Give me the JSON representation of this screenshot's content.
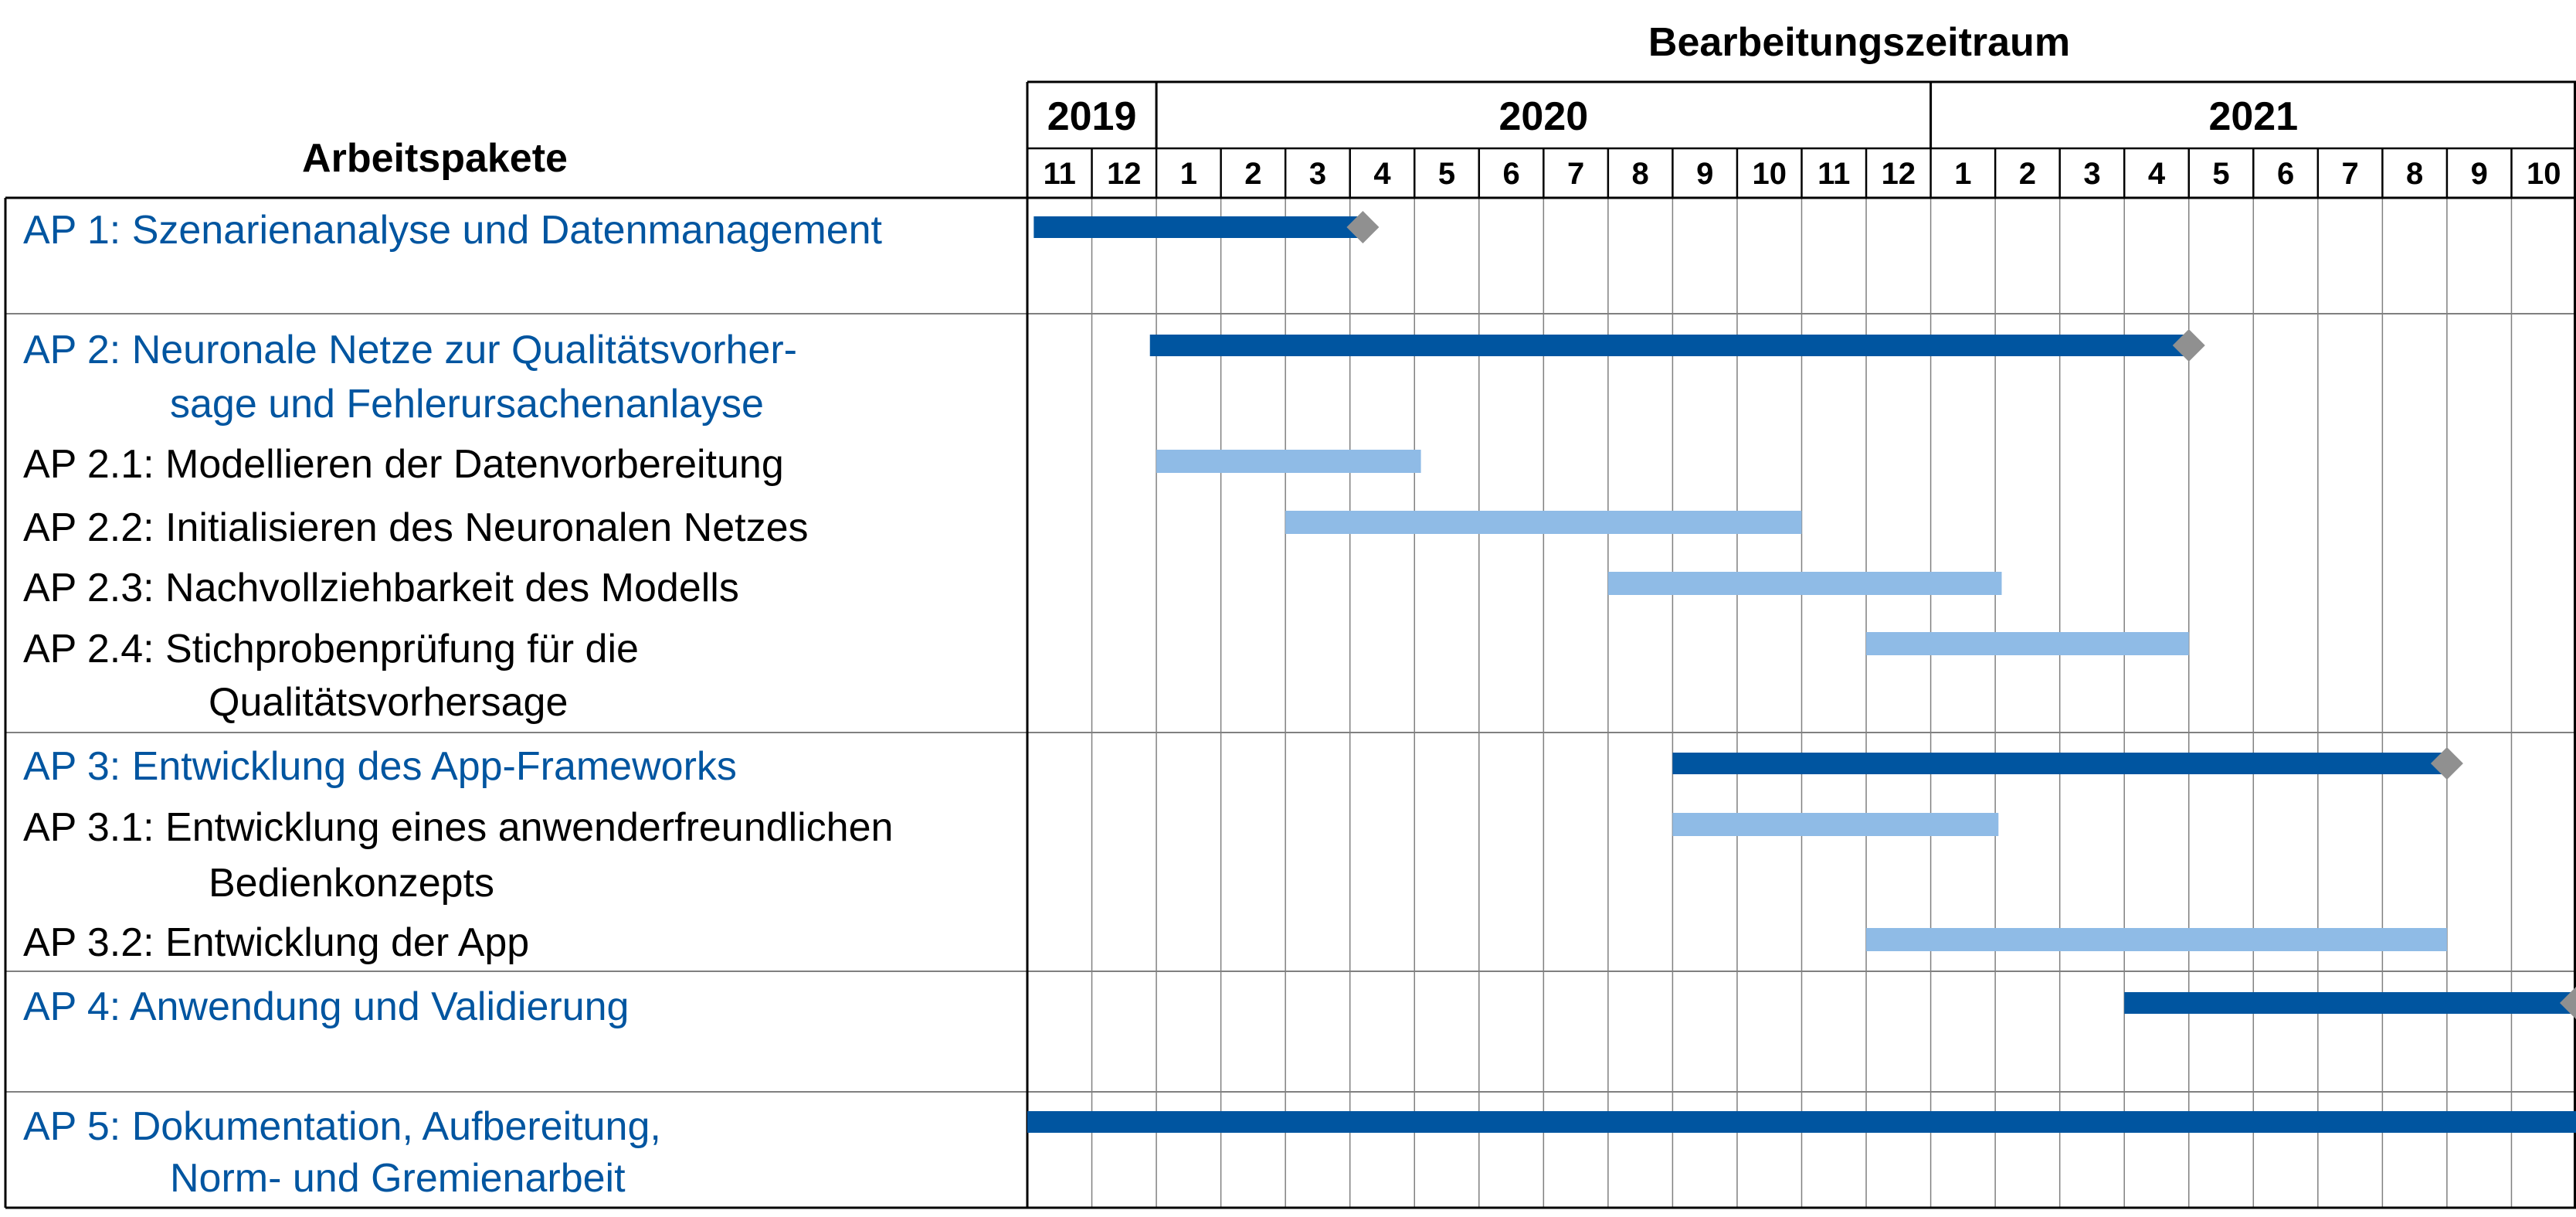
{
  "header": {
    "title": "Bearbeitungszeitraum",
    "left_title": "Arbeitspakete"
  },
  "timeline": {
    "years": [
      {
        "label": "2019",
        "start": 0,
        "span": 2
      },
      {
        "label": "2020",
        "start": 2,
        "span": 12
      },
      {
        "label": "2021",
        "start": 14,
        "span": 10
      }
    ],
    "months": [
      "11",
      "12",
      "1",
      "2",
      "3",
      "4",
      "5",
      "6",
      "7",
      "8",
      "9",
      "10",
      "11",
      "12",
      "1",
      "2",
      "3",
      "4",
      "5",
      "6",
      "7",
      "8",
      "9",
      "10"
    ]
  },
  "colors": {
    "main_bar": "#0055a0",
    "sub_bar": "#8fbbe6",
    "milestone": "#909090",
    "main_text": "#0055a0",
    "sub_text": "#000000",
    "grid": "#808080",
    "border": "#000000"
  },
  "work_packages": [
    {
      "id": "ap1",
      "label": "AP 1: Szenarienanalyse und Datenmanagement",
      "bar": {
        "start": 0.1,
        "end": 5.2,
        "milestone": true
      },
      "subpackages": []
    },
    {
      "id": "ap2",
      "label": "AP 2: Neuronale Netze zur Qualitätsvorher-",
      "label_cont": "sage und Fehlerursachenanlayse",
      "bar": {
        "start": 1.9,
        "end": 18.0,
        "milestone": true
      },
      "subpackages": [
        {
          "label": "AP 2.1: Modellieren der Datenvorbereitung",
          "bar": {
            "start": 2.0,
            "end": 6.1
          }
        },
        {
          "label": "AP 2.2: Initialisieren des Neuronalen Netzes",
          "bar": {
            "start": 4.0,
            "end": 12.0
          }
        },
        {
          "label": "AP 2.3: Nachvollziehbarkeit des Modells",
          "bar": {
            "start": 9.0,
            "end": 15.1
          }
        },
        {
          "label": "AP 2.4: Stichprobenprüfung für die",
          "label_cont": "Qualitätsvorhersage",
          "bar": {
            "start": 13.0,
            "end": 18.0
          }
        }
      ]
    },
    {
      "id": "ap3",
      "label": "AP 3: Entwicklung des App-Frameworks",
      "bar": {
        "start": 10.0,
        "end": 22.0,
        "milestone": true
      },
      "subpackages": [
        {
          "label": "AP 3.1: Entwicklung eines anwenderfreundlichen",
          "label_cont": "Bedienkonzepts",
          "bar": {
            "start": 10.0,
            "end": 15.05
          }
        },
        {
          "label": "AP 3.2: Entwicklung der App",
          "bar": {
            "start": 13.0,
            "end": 22.0
          }
        }
      ]
    },
    {
      "id": "ap4",
      "label": "AP 4: Anwendung und Validierung",
      "bar": {
        "start": 17.0,
        "end": 24.0,
        "milestone": true
      },
      "subpackages": []
    },
    {
      "id": "ap5",
      "label": "AP 5: Dokumentation, Aufbereitung,",
      "label_cont": "Norm- und Gremienarbeit",
      "bar": {
        "start": 0.0,
        "end": 24.0,
        "milestone": false
      },
      "subpackages": []
    }
  ]
}
